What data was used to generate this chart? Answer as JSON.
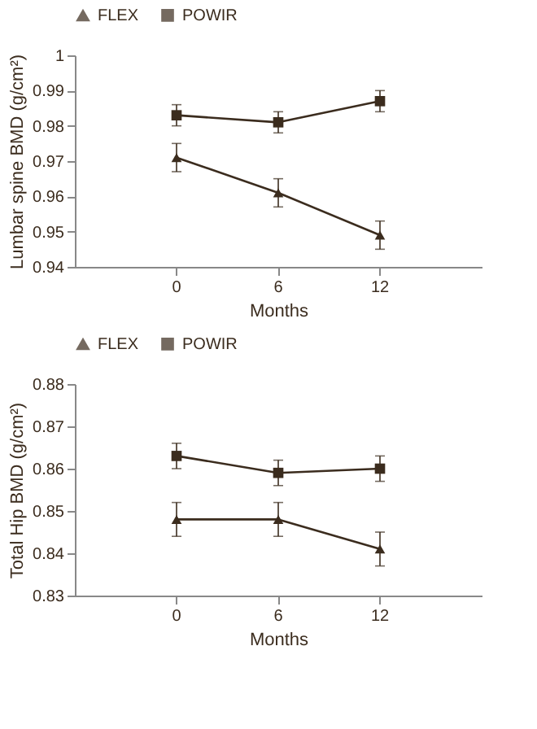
{
  "chart_data": [
    {
      "type": "line",
      "xlabel": "Months",
      "ylabel": "Lumbar spine BMD (g/cm²)",
      "categories": [
        "0",
        "6",
        "12"
      ],
      "ylim": [
        0.94,
        1
      ],
      "yticks": [
        0.94,
        0.95,
        0.96,
        0.97,
        0.98,
        0.99,
        1
      ],
      "grid": false,
      "legend": "top",
      "series": [
        {
          "name": "FLEX",
          "color": "#3b2c1e",
          "marker": "triangle",
          "values": [
            0.971,
            0.961,
            0.949
          ],
          "errors": [
            0.004,
            0.004,
            0.004
          ]
        },
        {
          "name": "POWIR",
          "color": "#3b2c1e",
          "marker": "square",
          "values": [
            0.983,
            0.981,
            0.987
          ],
          "errors": [
            0.003,
            0.003,
            0.003
          ]
        }
      ]
    },
    {
      "type": "line",
      "xlabel": "Months",
      "ylabel": "Total Hip BMD (g/cm²)",
      "categories": [
        "0",
        "6",
        "12"
      ],
      "ylim": [
        0.83,
        0.88
      ],
      "yticks": [
        0.83,
        0.84,
        0.85,
        0.86,
        0.87,
        0.88
      ],
      "grid": false,
      "legend": "top",
      "series": [
        {
          "name": "FLEX",
          "color": "#3b2c1e",
          "marker": "triangle",
          "values": [
            0.848,
            0.848,
            0.841
          ],
          "errors": [
            0.004,
            0.004,
            0.004
          ]
        },
        {
          "name": "POWIR",
          "color": "#3b2c1e",
          "marker": "square",
          "values": [
            0.863,
            0.859,
            0.86
          ],
          "errors": [
            0.003,
            0.003,
            0.003
          ]
        }
      ]
    }
  ]
}
